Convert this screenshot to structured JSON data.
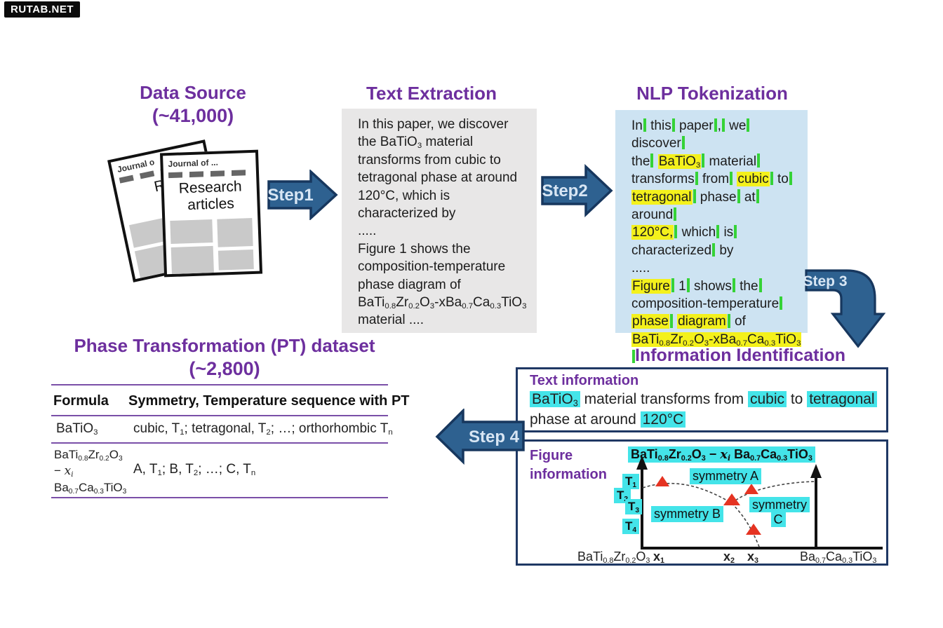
{
  "watermark": "RUTAB.NET",
  "palette": {
    "heading_purple": "#6d2f9e",
    "arrow_fill": "#2e6190",
    "arrow_border": "#17375e",
    "arrow_text": "#d8e6f4",
    "extraction_box_bg": "#e8e7e7",
    "tokenization_box_bg": "#cde3f2",
    "token_highlight_yellow": "#f4f11c",
    "token_separator_green": "#35d337",
    "entity_highlight_cyan": "#44e4e9",
    "marker_red": "#e53322",
    "info_box_border": "#1f3864",
    "table_rule_purple": "#7a4fa8"
  },
  "data_source": {
    "title": "Data Source",
    "count": "(~41,000)",
    "front_page": {
      "header": "Journal of ...",
      "title_line1": "Research",
      "title_line2": "articles"
    },
    "back_page": {
      "header": "Journal o",
      "title_line1": "Re",
      "title_line2": "a"
    }
  },
  "arrows": {
    "step1": "Step1",
    "step2": "Step2",
    "step3": "Step 3",
    "step4": "Step 4"
  },
  "text_extraction": {
    "title": "Text Extraction",
    "lines": [
      "In this paper, we discover",
      "the BaTiO<sub>3</sub> material",
      "transforms from cubic to",
      "tetragonal phase at around",
      "120°C, which is",
      "characterized by",
      ".....",
      "Figure 1 shows the",
      "composition-temperature",
      "phase diagram of",
      "BaTi<sub>0.8</sub>Zr<sub>0.2</sub>O<sub>3</sub>-xBa<sub>0.7</sub>Ca<sub>0.3</sub>TiO<sub>3</sub>",
      "material ...."
    ]
  },
  "nlp_tokenization": {
    "title": "NLP Tokenization",
    "lines": [
      "In<i></i> this<i></i> paper<i></i>,<i></i> we<i></i> discover<i></i>",
      "the<i></i> <span class='y'>BaTiO<sub>3</sub></span><i></i> material<i></i>",
      "transforms<i></i> from<i></i> <span class='y'>cubic</span><i></i> to<i></i>",
      "<span class='y'>tetragonal</span><i></i> phase<i></i> at<i></i> around<i></i>",
      "<span class='y'>120°C,</span><i></i> which<i></i> is<i></i>",
      "characterized<i></i> by",
      ".....",
      "<span class='y'>Figure</span><i></i> 1<i></i> shows<i></i> the<i></i>",
      "composition-temperature<i></i>",
      "<span class='y'>phase</span><i></i> <span class='y'>diagram</span><i></i> of",
      "<span class='y'>BaTi<sub>0.8</sub>Zr<sub>0.2</sub>O<sub>3</sub>-xBa<sub>0.7</sub>Ca<sub>0.3</sub>TiO<sub>3</sub></span><i></i>",
      "material<i></i> ...."
    ]
  },
  "information_identification": {
    "title": "Information Identification",
    "text_information": {
      "label": "Text information",
      "lines": [
        "<span class='c'>BaTiO<sub>3</sub></span> material transforms from <span class='c'>cubic</span> to <span class='c'>tetragonal</span>",
        "phase at around <span class='c'>120°C</span>"
      ]
    },
    "figure_information": {
      "label_line1": "Figure",
      "label_line2": "information",
      "figure_title": "BaTi<sub>0.8</sub>Zr<sub>0.2</sub>O<sub>3</sub> − <em>x<sub>i</sub></em> Ba<sub>0.7</sub>Ca<sub>0.3</sub>TiO<sub>3</sub>",
      "temperature_labels": {
        "t1": "T<sub>1</sub>",
        "t2": "T<sub>2</sub>",
        "t3": "T<sub>3</sub>",
        "t4": "T<sub>4</sub>"
      },
      "region_labels": {
        "a": "symmetry A",
        "b": "symmetry B",
        "c_line1": "symmetry",
        "c_line2": "C"
      },
      "x_axis_labels": {
        "left_formula": "BaTi<sub>0.8</sub>Zr<sub>0.2</sub>O<sub>3</sub>",
        "x1": "x<sub>1</sub>",
        "x2": "x<sub>2</sub>",
        "x3": "x<sub>3</sub>",
        "right_formula": "Ba<sub>0.7</sub>Ca<sub>0.3</sub>TiO<sub>3</sub>"
      }
    }
  },
  "pt_dataset": {
    "title": "Phase Transformation (PT) dataset",
    "count": "(~2,800)",
    "columns": {
      "formula": "Formula",
      "sequence": "Symmetry, Temperature sequence with PT"
    },
    "rows": [
      {
        "formula": "BaTiO<sub>3</sub>",
        "sequence": "cubic, T<sub>1</sub>; tetragonal, T<sub>2</sub>; …; orthorhombic T<sub>n</sub>"
      },
      {
        "formula": "BaTi<sub>0.8</sub>Zr<sub>0.2</sub>O<sub>3</sub><br>− <em>x<sub>i</sub></em><br>Ba<sub>0.7</sub>Ca<sub>0.3</sub>TiO<sub>3</sub>",
        "sequence": "A, T<sub>1</sub>; B, T<sub>2</sub>; …; C, T<sub>n</sub>"
      }
    ]
  }
}
